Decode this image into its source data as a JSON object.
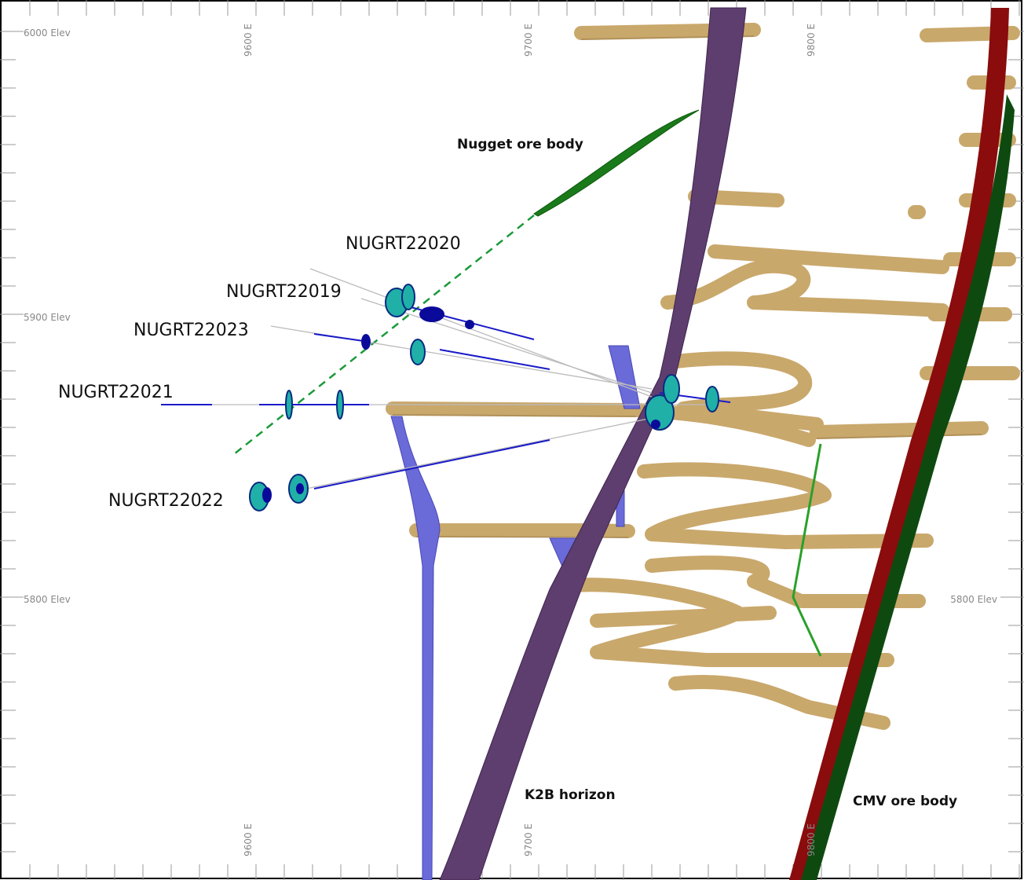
{
  "grid_labels": {
    "left": [
      "6000 Elev",
      "5900 Elev",
      "5800 Elev"
    ],
    "right": [
      "5800 Elev"
    ],
    "top": [
      "9600 E",
      "9700 E",
      "9800 E"
    ],
    "bottom": [
      "9600 E",
      "9700 E",
      "9800 E"
    ]
  },
  "drillholes": [
    "NUGRT22020",
    "NUGRT22019",
    "NUGRT22023",
    "NUGRT22021",
    "NUGRT22022"
  ],
  "annotations": [
    "Nugget ore body",
    "K2B horizon",
    "CMV ore body"
  ]
}
